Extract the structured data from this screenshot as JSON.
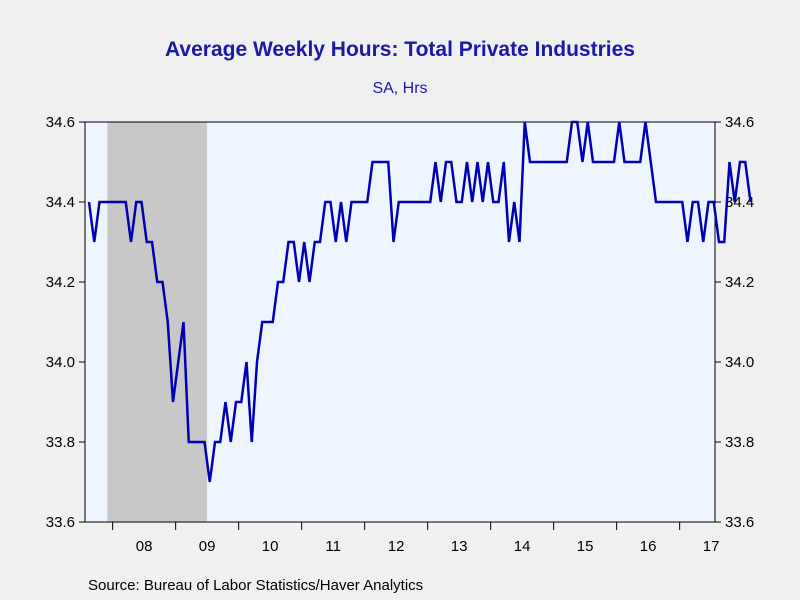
{
  "title": "Average Weekly Hours: Total Private Industries",
  "subtitle": "SA, Hrs",
  "source": "Source:  Bureau of Labor Statistics/Haver Analytics",
  "colors": {
    "line": "#0000b4",
    "title": "#1a1aa6",
    "plot_bg": "#eef5ff",
    "recession": "#c8c8c8"
  },
  "chart_data": {
    "type": "line",
    "title": "Average Weekly Hours: Total Private Industries",
    "subtitle": "SA, Hrs",
    "frequency": "monthly",
    "start": "2007-08",
    "ylim": [
      33.6,
      34.6
    ],
    "yticks": [
      "34.6",
      "34.4",
      "34.2",
      "34.0",
      "33.8",
      "33.6"
    ],
    "ytick_values": [
      34.6,
      34.4,
      34.2,
      34.0,
      33.8,
      33.6
    ],
    "y_axis_both_sides": true,
    "xtick_labels": [
      "08",
      "09",
      "10",
      "11",
      "12",
      "13",
      "14",
      "15",
      "16",
      "17"
    ],
    "recession": {
      "start": "2007-12",
      "end": "2009-06"
    },
    "series": [
      {
        "values": [
          34.4,
          34.3,
          34.4,
          34.4,
          34.4,
          34.4,
          34.4,
          34.4,
          34.3,
          34.4,
          34.4,
          34.3,
          34.3,
          34.2,
          34.2,
          34.1,
          33.9,
          34.0,
          34.1,
          33.8,
          33.8,
          33.8,
          33.8,
          33.7,
          33.8,
          33.8,
          33.9,
          33.8,
          33.9,
          33.9,
          34.0,
          33.8,
          34.0,
          34.1,
          34.1,
          34.1,
          34.2,
          34.2,
          34.3,
          34.3,
          34.2,
          34.3,
          34.2,
          34.3,
          34.3,
          34.4,
          34.4,
          34.3,
          34.4,
          34.3,
          34.4,
          34.4,
          34.4,
          34.4,
          34.5,
          34.5,
          34.5,
          34.5,
          34.3,
          34.4,
          34.4,
          34.4,
          34.4,
          34.4,
          34.4,
          34.4,
          34.5,
          34.4,
          34.5,
          34.5,
          34.4,
          34.4,
          34.5,
          34.4,
          34.5,
          34.4,
          34.5,
          34.4,
          34.4,
          34.5,
          34.3,
          34.4,
          34.3,
          34.6,
          34.5,
          34.5,
          34.5,
          34.5,
          34.5,
          34.5,
          34.5,
          34.5,
          34.6,
          34.6,
          34.5,
          34.6,
          34.5,
          34.5,
          34.5,
          34.5,
          34.5,
          34.6,
          34.5,
          34.5,
          34.5,
          34.5,
          34.6,
          34.5,
          34.4,
          34.4,
          34.4,
          34.4,
          34.4,
          34.4,
          34.3,
          34.4,
          34.4,
          34.3,
          34.4,
          34.4,
          34.3,
          34.3,
          34.5,
          34.4,
          34.5,
          34.5,
          34.4
        ]
      }
    ]
  }
}
